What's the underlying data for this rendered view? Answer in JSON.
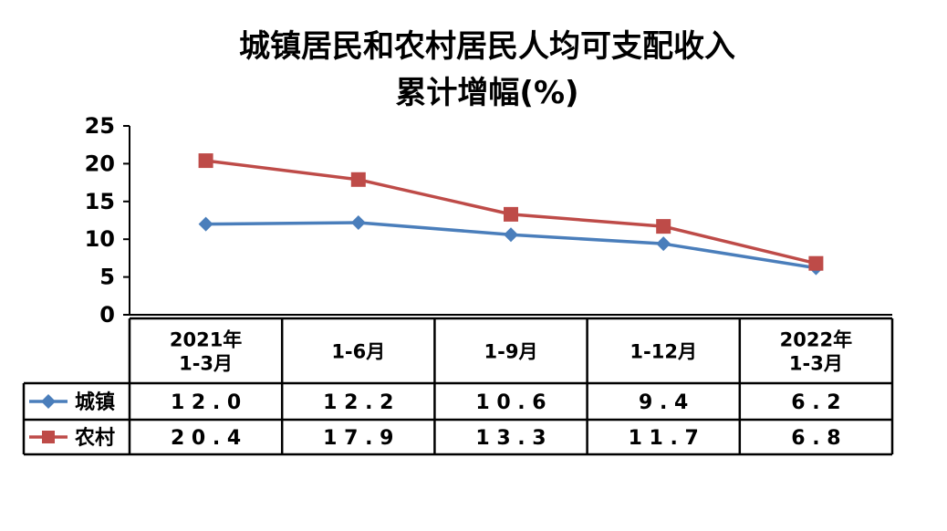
{
  "chart_data": {
    "type": "line",
    "title_lines": [
      "城镇居民和农村居民人均可支配收入",
      "累计增幅(%)"
    ],
    "categories": [
      [
        "2021年",
        "1-3月"
      ],
      [
        "1-6月"
      ],
      [
        "1-9月"
      ],
      [
        "1-12月"
      ],
      [
        "2022年",
        "1-3月"
      ]
    ],
    "series": [
      {
        "name": "城镇",
        "values": [
          12.0,
          12.2,
          10.6,
          9.4,
          6.2
        ],
        "labels": [
          "12.0",
          "12.2",
          "10.6",
          "9.4",
          "6.2"
        ],
        "color": "#4a7ebb",
        "marker": "diamond"
      },
      {
        "name": "农村",
        "values": [
          20.4,
          17.9,
          13.3,
          11.7,
          6.8
        ],
        "labels": [
          "20.4",
          "17.9",
          "13.3",
          "11.7",
          "6.8"
        ],
        "color": "#be4b48",
        "marker": "square"
      }
    ],
    "y_ticks": [
      "0",
      "5",
      "10",
      "15",
      "20",
      "25"
    ],
    "ylim": [
      0,
      25
    ],
    "grid": false,
    "legend": "data-table-left"
  }
}
